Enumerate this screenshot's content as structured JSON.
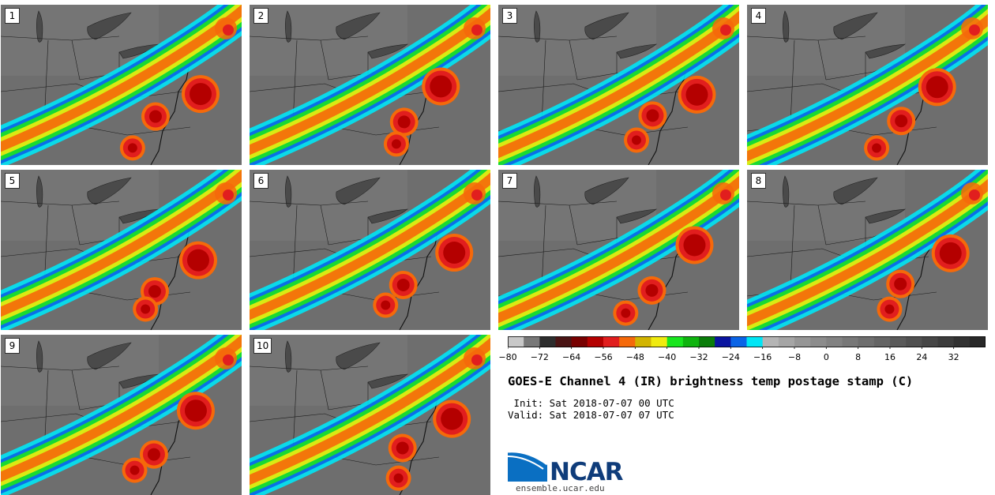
{
  "title": "GOES-E Channel 4 (IR) brightness temp postage stamp (C)",
  "init": " Init: Sat 2018-07-07 00 UTC",
  "valid": "Valid: Sat 2018-07-07 07 UTC",
  "panels": [
    {
      "label": "1"
    },
    {
      "label": "2"
    },
    {
      "label": "3"
    },
    {
      "label": "4"
    },
    {
      "label": "5"
    },
    {
      "label": "6"
    },
    {
      "label": "7"
    },
    {
      "label": "8"
    },
    {
      "label": "9"
    },
    {
      "label": "10"
    }
  ],
  "colorbar": {
    "min": -80,
    "max": 40,
    "step": 4,
    "tick_labels": [
      "−80",
      "−72",
      "−64",
      "−56",
      "−48",
      "−40",
      "−32",
      "−24",
      "−16",
      "−8",
      "0",
      "8",
      "16",
      "24",
      "32"
    ],
    "colors": [
      "#c8c8c8",
      "#787878",
      "#2d2d2d",
      "#4a1414",
      "#780000",
      "#b40000",
      "#e11e1e",
      "#f5690a",
      "#d2b400",
      "#f0eb0f",
      "#19e61e",
      "#0fb40f",
      "#0a7d0a",
      "#0a14a0",
      "#0a64e6",
      "#00e6f5",
      "#b4b4b4",
      "#a5a5a5",
      "#969696",
      "#8c8c8c",
      "#828282",
      "#787878",
      "#6e6e6e",
      "#646464",
      "#5a5a5a",
      "#505050",
      "#464646",
      "#3c3c3c",
      "#323232",
      "#282828"
    ]
  },
  "logo": {
    "name": "NCAR",
    "url": "ensemble.ucar.edu"
  }
}
